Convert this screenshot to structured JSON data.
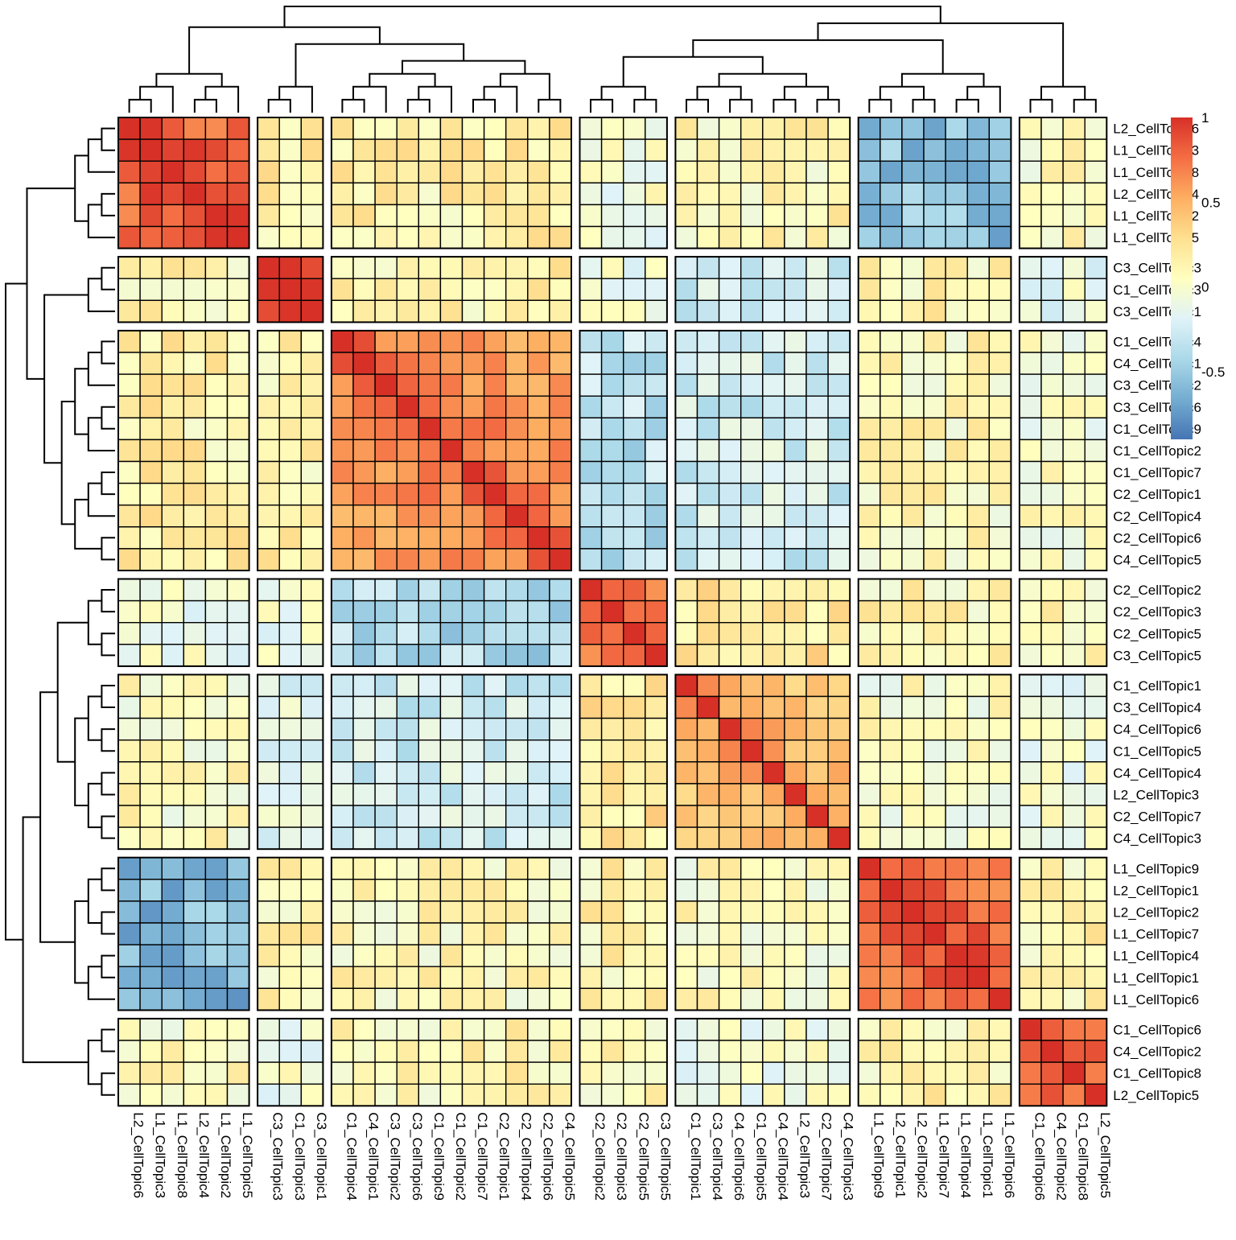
{
  "chart_data": {
    "type": "heatmap",
    "title": "",
    "xlabel": "",
    "ylabel": "",
    "labels": [
      "L2_CellTopic6",
      "L1_CellTopic3",
      "L1_CellTopic8",
      "L2_CellTopic4",
      "L1_CellTopic2",
      "L1_CellTopic5",
      "C3_CellTopic3",
      "C1_CellTopic3",
      "C3_CellTopic1",
      "C1_CellTopic4",
      "C4_CellTopic1",
      "C3_CellTopic2",
      "C3_CellTopic6",
      "C1_CellTopic9",
      "C1_CellTopic2",
      "C1_CellTopic7",
      "C2_CellTopic1",
      "C2_CellTopic4",
      "C2_CellTopic6",
      "C4_CellTopic5",
      "C2_CellTopic2",
      "C2_CellTopic3",
      "C2_CellTopic5",
      "C3_CellTopic5",
      "C1_CellTopic1",
      "C3_CellTopic4",
      "C4_CellTopic6",
      "C1_CellTopic5",
      "C4_CellTopic4",
      "L2_CellTopic3",
      "C2_CellTopic7",
      "C4_CellTopic3",
      "L1_CellTopic9",
      "L2_CellTopic1",
      "L2_CellTopic2",
      "L1_CellTopic7",
      "L1_CellTopic4",
      "L1_CellTopic1",
      "L1_CellTopic6",
      "C1_CellTopic6",
      "C4_CellTopic2",
      "C1_CellTopic8",
      "L2_CellTopic5"
    ],
    "row_groups": [
      6,
      3,
      11,
      4,
      8,
      7,
      4
    ],
    "col_groups": [
      6,
      3,
      11,
      4,
      8,
      7,
      4
    ],
    "block_means": [
      [
        0.7,
        0.15,
        0.15,
        -0.02,
        0.1,
        -0.55,
        0.05
      ],
      [
        0.1,
        0.8,
        0.15,
        -0.05,
        -0.25,
        0.12,
        -0.1
      ],
      [
        0.15,
        0.15,
        0.55,
        -0.35,
        -0.25,
        0.08,
        0.0
      ],
      [
        -0.05,
        -0.05,
        -0.4,
        0.55,
        0.22,
        0.1,
        0.1
      ],
      [
        0.05,
        -0.15,
        -0.25,
        0.22,
        0.35,
        0.02,
        -0.05
      ],
      [
        -0.6,
        0.12,
        0.08,
        0.12,
        0.05,
        0.65,
        0.12
      ],
      [
        0.05,
        -0.05,
        0.1,
        0.1,
        -0.05,
        0.12,
        0.6
      ]
    ],
    "value_range": [
      -0.9,
      1
    ],
    "colorbar": {
      "ticks": [
        1,
        0.5,
        0,
        -0.5
      ],
      "tick_labels": [
        "1",
        "0.5",
        "0",
        "-0.5"
      ],
      "colors": [
        "#4575B4",
        "#74ADD1",
        "#ABD9E9",
        "#E0F3F8",
        "#FFFFBF",
        "#FEE090",
        "#FDAE61",
        "#F46D43",
        "#D73027"
      ]
    },
    "grid": false,
    "legend_position": "top-right",
    "dendrograms": [
      "top",
      "left"
    ]
  }
}
